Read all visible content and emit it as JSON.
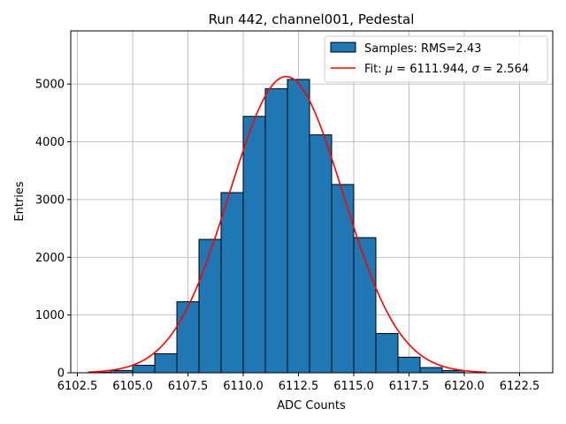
{
  "chart_data": {
    "type": "bar",
    "title": "Run 442, channel001, Pedestal",
    "xlabel": "ADC Counts",
    "ylabel": "Entries",
    "xlim": [
      6102.2,
      6124.0
    ],
    "ylim": [
      0,
      5920
    ],
    "x_ticks": [
      6102.5,
      6105.0,
      6107.5,
      6110.0,
      6112.5,
      6115.0,
      6117.5,
      6120.0,
      6122.5
    ],
    "x_tick_labels": [
      "6102.5",
      "6105.0",
      "6107.5",
      "6110.0",
      "6112.5",
      "6115.0",
      "6117.5",
      "6120.0",
      "6122.5"
    ],
    "y_ticks": [
      0,
      1000,
      2000,
      3000,
      4000,
      5000
    ],
    "y_tick_labels": [
      "0",
      "1000",
      "2000",
      "3000",
      "4000",
      "5000"
    ],
    "grid": true,
    "legend_position": "top-right",
    "bin_edges": [
      6103,
      6104,
      6105,
      6106,
      6107,
      6108,
      6109,
      6110,
      6111,
      6112,
      6113,
      6114,
      6115,
      6116,
      6117,
      6118,
      6119,
      6120,
      6121,
      6122,
      6123
    ],
    "series": [
      {
        "name": "Samples: RMS=2.43",
        "kind": "histogram",
        "color": "#1f77b4",
        "edgecolor": "#000000",
        "values": [
          10,
          40,
          130,
          330,
          1230,
          2310,
          3120,
          4440,
          4920,
          5080,
          4120,
          3260,
          2340,
          680,
          270,
          90,
          40,
          0,
          0,
          0
        ]
      },
      {
        "name_prefix": "Fit: ",
        "name_mu": "μ",
        "name_mid": " = 6111.944, ",
        "name_sigma": "σ",
        "name_suffix": " = 2.564",
        "kind": "gaussian-fit",
        "color": "#ff0000",
        "mu": 6111.944,
        "sigma": 2.564,
        "amplitude": 5130,
        "x_range": [
          6103,
          6121
        ]
      }
    ]
  }
}
